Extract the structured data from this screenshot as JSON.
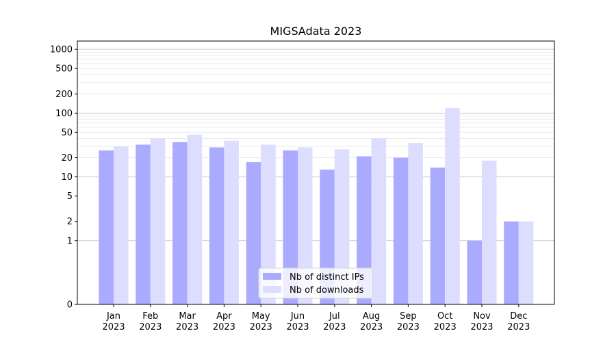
{
  "chart_data": {
    "type": "bar",
    "title": "MIGSAdata 2023",
    "xlabel": "",
    "ylabel": "",
    "categories": [
      [
        "Jan",
        "2023"
      ],
      [
        "Feb",
        "2023"
      ],
      [
        "Mar",
        "2023"
      ],
      [
        "Apr",
        "2023"
      ],
      [
        "May",
        "2023"
      ],
      [
        "Jun",
        "2023"
      ],
      [
        "Jul",
        "2023"
      ],
      [
        "Aug",
        "2023"
      ],
      [
        "Sep",
        "2023"
      ],
      [
        "Oct",
        "2023"
      ],
      [
        "Nov",
        "2023"
      ],
      [
        "Dec",
        "2023"
      ]
    ],
    "series": [
      {
        "name": "Nb of distinct IPs",
        "color": "#aaaaff",
        "values": [
          26,
          32,
          35,
          29,
          17,
          26,
          13,
          21,
          20,
          14,
          1,
          2
        ]
      },
      {
        "name": "Nb of downloads",
        "color": "#ddddff",
        "values": [
          30,
          40,
          46,
          37,
          32,
          29,
          27,
          40,
          34,
          120,
          18,
          2
        ]
      }
    ],
    "y_scale": "symlog",
    "ylim": [
      0,
      1350
    ],
    "y_ticks": [
      0,
      1,
      2,
      5,
      10,
      20,
      50,
      100,
      200,
      500,
      1000
    ],
    "y_tick_labels": [
      "0",
      "1",
      "2",
      "5",
      "10",
      "20",
      "50",
      "100",
      "200",
      "500",
      "1000"
    ],
    "grid": true,
    "legend_position": "lower-center"
  }
}
